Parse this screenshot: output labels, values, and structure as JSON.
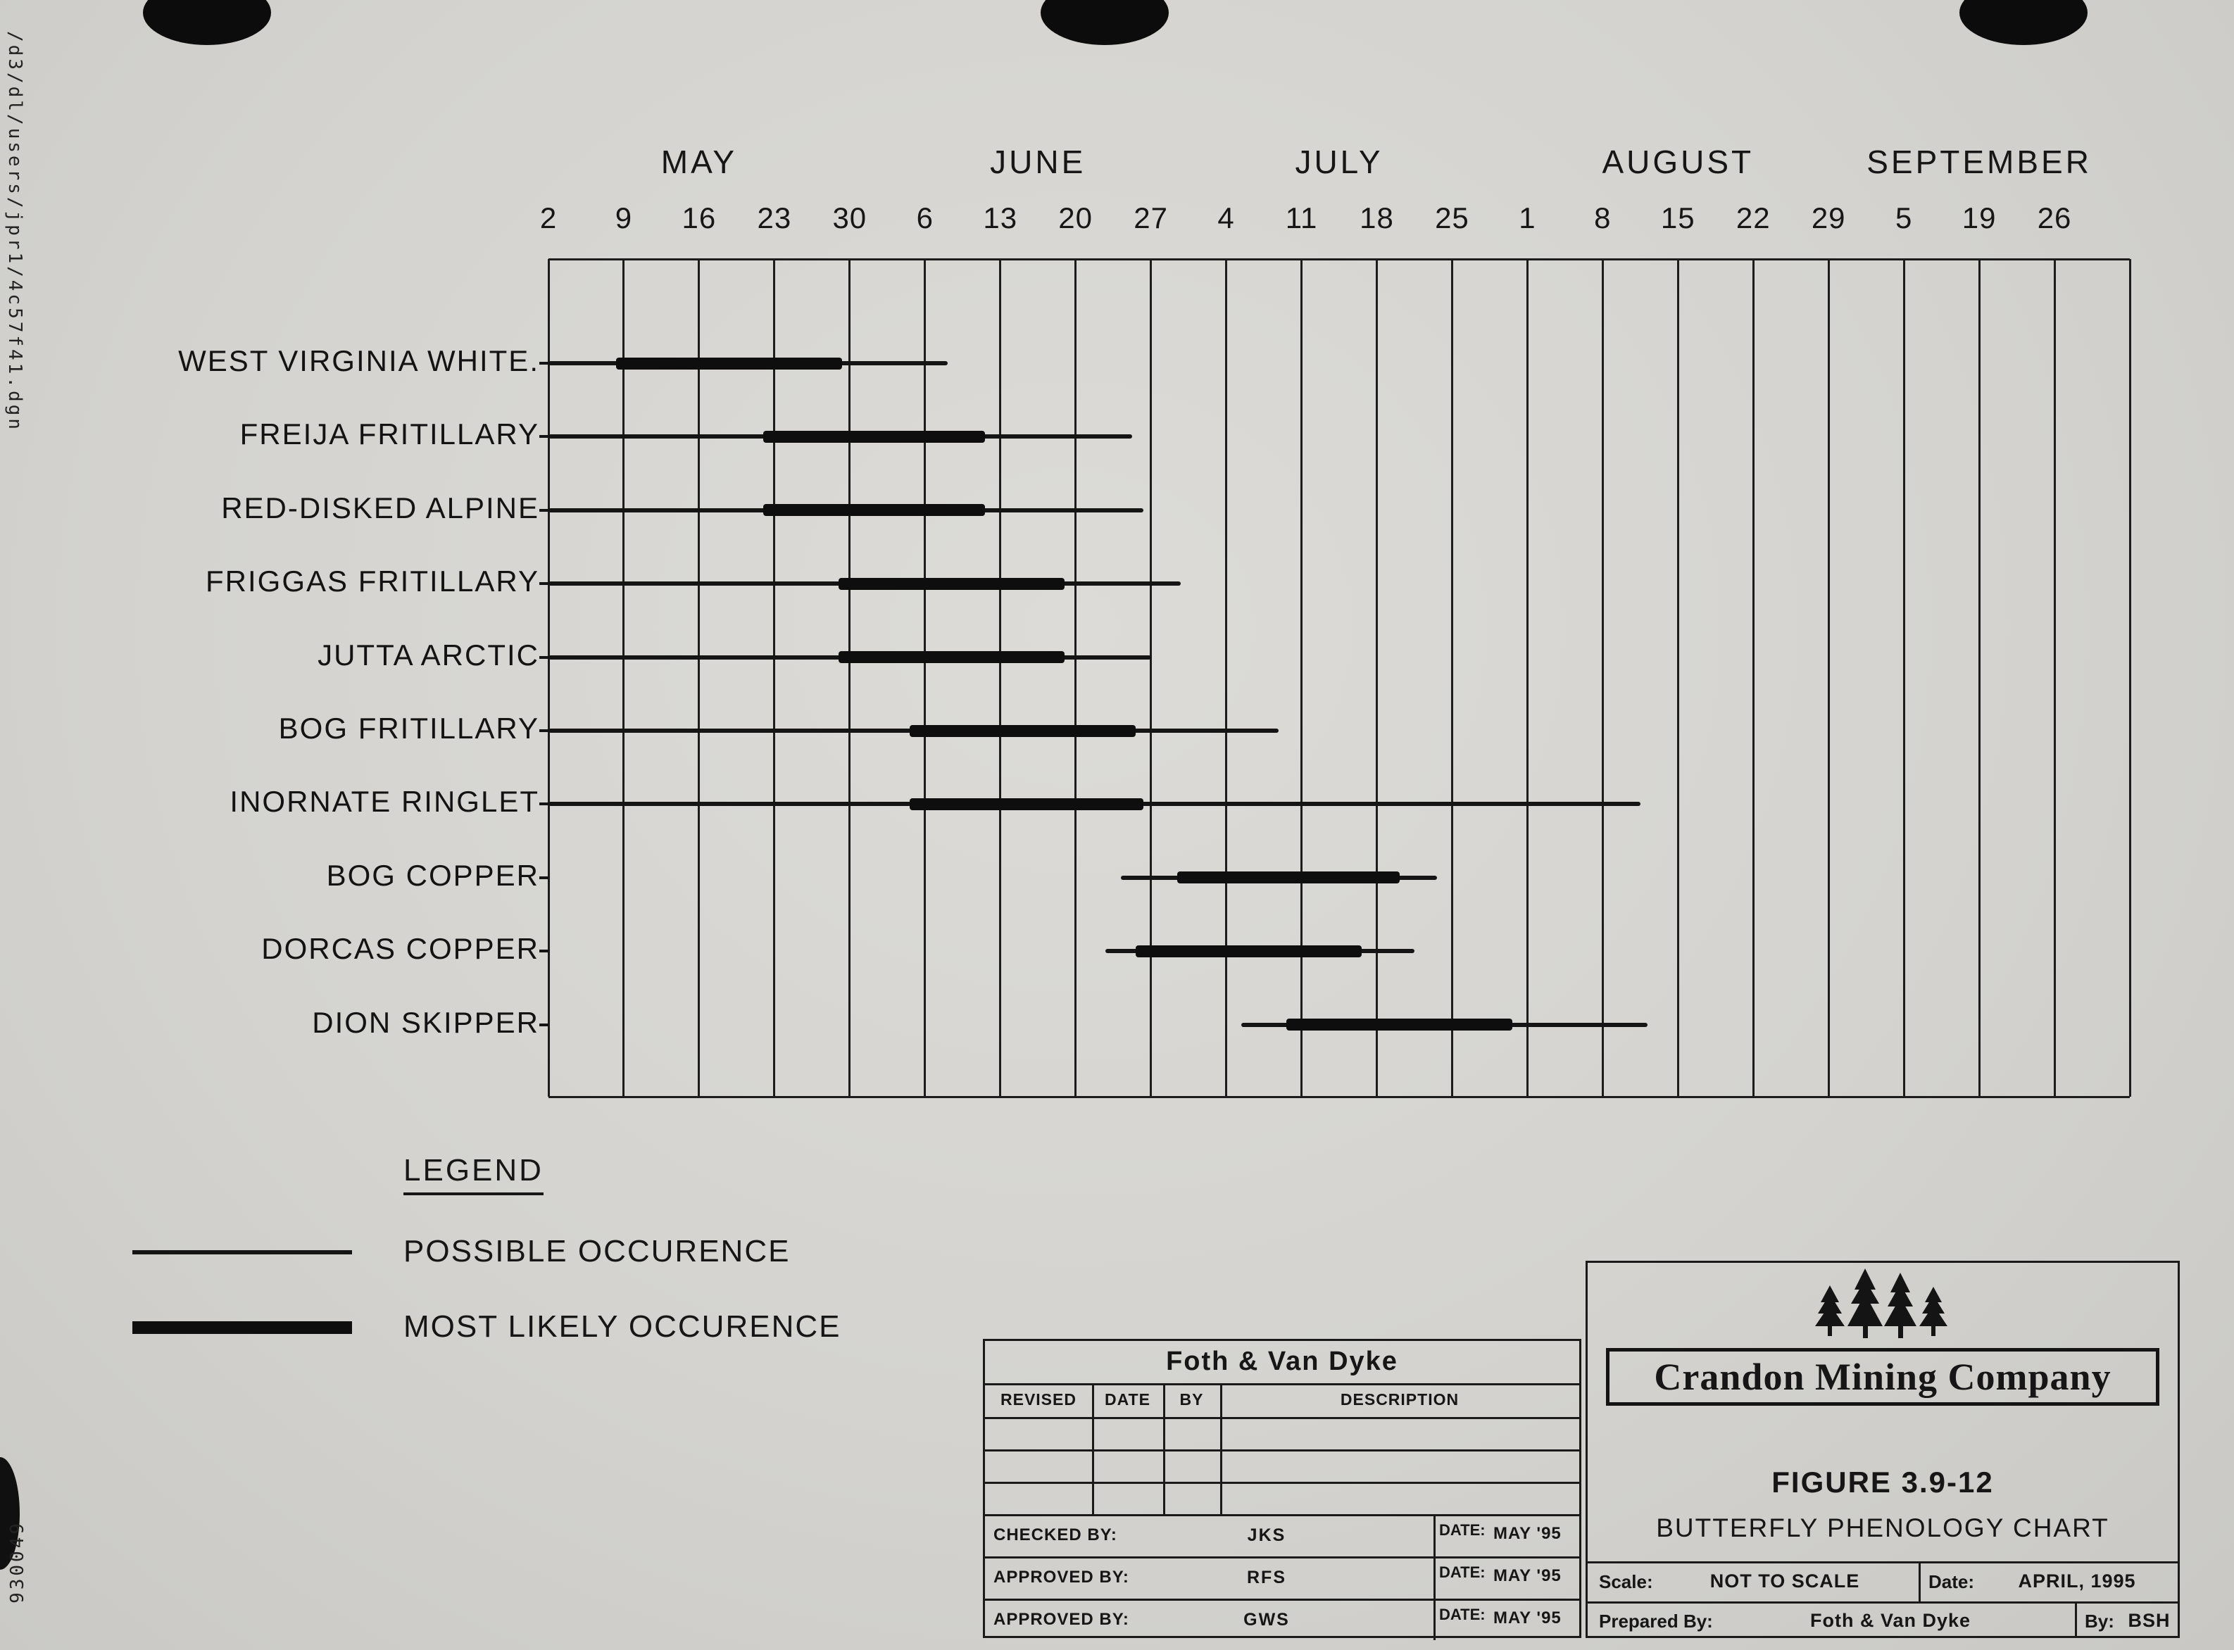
{
  "page": {
    "stamp_path": "/d3/dl/users/jpr1/4c57f41.dgn",
    "stamp_number": "930049"
  },
  "chart_data": {
    "type": "gantt",
    "title": "BUTTERFLY PHENOLOGY CHART",
    "columns_unit": "weekly column index; 0 = gridline of May 2, 1 column = 1 week tick",
    "months": [
      {
        "label": "MAY",
        "dates": [
          "2",
          "9",
          "16",
          "23",
          "30"
        ]
      },
      {
        "label": "JUNE",
        "dates": [
          "6",
          "13",
          "20",
          "27"
        ]
      },
      {
        "label": "JULY",
        "dates": [
          "4",
          "11",
          "18",
          "25"
        ]
      },
      {
        "label": "AUGUST",
        "dates": [
          "1",
          "8",
          "15",
          "22",
          "29"
        ]
      },
      {
        "label": "SEPTEMBER",
        "dates": [
          "5",
          "19",
          "26"
        ]
      }
    ],
    "rows": [
      {
        "species": "WEST VIRGINIA WHITE.",
        "possible": [
          0,
          5.3
        ],
        "likely": [
          0.9,
          3.9
        ]
      },
      {
        "species": "FREIJA FRITILLARY",
        "possible": [
          0,
          7.75
        ],
        "likely": [
          2.85,
          5.8
        ]
      },
      {
        "species": "RED-DISKED ALPINE",
        "possible": [
          0,
          7.9
        ],
        "likely": [
          2.85,
          5.8
        ]
      },
      {
        "species": "FRIGGAS FRITILLARY",
        "possible": [
          0,
          8.4
        ],
        "likely": [
          3.85,
          6.85
        ]
      },
      {
        "species": "JUTTA ARCTIC",
        "possible": [
          0,
          8.0
        ],
        "likely": [
          3.85,
          6.85
        ]
      },
      {
        "species": "BOG FRITILLARY",
        "possible": [
          0,
          9.7
        ],
        "likely": [
          4.8,
          7.8
        ]
      },
      {
        "species": "INORNATE RINGLET",
        "possible": [
          0,
          14.5
        ],
        "likely": [
          4.8,
          7.9
        ]
      },
      {
        "species": "BOG COPPER",
        "possible": [
          7.6,
          11.8
        ],
        "likely": [
          8.35,
          11.3
        ]
      },
      {
        "species": "DORCAS COPPER",
        "possible": [
          7.4,
          11.5
        ],
        "likely": [
          7.8,
          10.8
        ]
      },
      {
        "species": "DION SKIPPER",
        "possible": [
          9.2,
          14.6
        ],
        "likely": [
          9.8,
          12.8
        ]
      }
    ],
    "legend_position": "bottom-left",
    "grid": "vertical weekly gridlines on"
  },
  "legend": {
    "title": "LEGEND",
    "possible_label": "POSSIBLE OCCURENCE",
    "likely_label": "MOST LIKELY OCCURENCE"
  },
  "revision_block": {
    "company": "Foth & Van Dyke",
    "columns": [
      "REVISED",
      "DATE",
      "BY",
      "DESCRIPTION"
    ],
    "signoffs": [
      {
        "label": "CHECKED BY:",
        "value": "JKS",
        "date_label": "DATE:",
        "date": "MAY '95"
      },
      {
        "label": "APPROVED BY:",
        "value": "RFS",
        "date_label": "DATE:",
        "date": "MAY '95"
      },
      {
        "label": "APPROVED BY:",
        "value": "GWS",
        "date_label": "DATE:",
        "date": "MAY '95"
      }
    ]
  },
  "title_block": {
    "company": "Crandon Mining Company",
    "figure": "FIGURE 3.9-12",
    "title": "BUTTERFLY PHENOLOGY CHART",
    "scale_label": "Scale:",
    "scale": "NOT TO SCALE",
    "date_label": "Date:",
    "date": "APRIL, 1995",
    "prepared_label": "Prepared By:",
    "prepared": "Foth & Van Dyke",
    "by_label": "By:",
    "by": "BSH"
  },
  "colors": {
    "paper": "#d4d3cf",
    "ink": "#161616"
  }
}
